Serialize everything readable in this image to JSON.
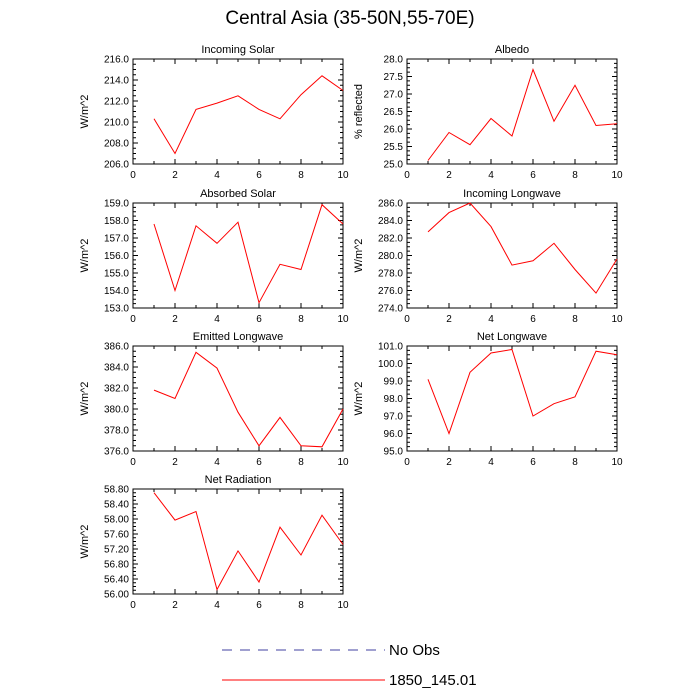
{
  "title": "Central Asia (35-50N,55-70E)",
  "colors": {
    "model": "#ff0000",
    "obs": "#4040a0",
    "frame": "#000000"
  },
  "legend": [
    {
      "label": "No Obs",
      "style": "dashed",
      "color": "#4040a0"
    },
    {
      "label": "1850_145.01",
      "style": "solid",
      "color": "#ff0000"
    }
  ],
  "chart_data": [
    {
      "type": "line",
      "title": "Incoming Solar",
      "ylabel": "W/m^2",
      "x": [
        1,
        2,
        3,
        4,
        5,
        6,
        7,
        8,
        9,
        10
      ],
      "series": [
        {
          "name": "1850_145.01",
          "values": [
            210.3,
            207.0,
            211.2,
            211.8,
            212.5,
            211.2,
            210.3,
            212.6,
            214.4,
            213.0
          ]
        }
      ],
      "xlim": [
        0,
        10
      ],
      "ylim": [
        206,
        216
      ],
      "yticks": [
        "206.0",
        "208.0",
        "210.0",
        "212.0",
        "214.0",
        "216.0"
      ],
      "xticks": [
        "0",
        "2",
        "4",
        "6",
        "8",
        "10"
      ]
    },
    {
      "type": "line",
      "title": "Albedo",
      "ylabel": "% reflected",
      "x": [
        1,
        2,
        3,
        4,
        5,
        6,
        7,
        8,
        9,
        10
      ],
      "series": [
        {
          "name": "1850_145.01",
          "values": [
            25.1,
            25.9,
            25.55,
            26.3,
            25.8,
            27.7,
            26.22,
            27.25,
            26.1,
            26.15
          ]
        }
      ],
      "xlim": [
        0,
        10
      ],
      "ylim": [
        25,
        28
      ],
      "yticks": [
        "25.0",
        "25.5",
        "26.0",
        "26.5",
        "27.0",
        "27.5",
        "28.0"
      ],
      "xticks": [
        "0",
        "2",
        "4",
        "6",
        "8",
        "10"
      ]
    },
    {
      "type": "line",
      "title": "Absorbed Solar",
      "ylabel": "W/m^2",
      "x": [
        1,
        2,
        3,
        4,
        5,
        6,
        7,
        8,
        9,
        10
      ],
      "series": [
        {
          "name": "1850_145.01",
          "values": [
            157.8,
            154.0,
            157.7,
            156.7,
            157.9,
            153.3,
            155.5,
            155.2,
            158.9,
            157.8
          ]
        }
      ],
      "xlim": [
        0,
        10
      ],
      "ylim": [
        153,
        159
      ],
      "yticks": [
        "153.0",
        "154.0",
        "155.0",
        "156.0",
        "157.0",
        "158.0",
        "159.0"
      ],
      "xticks": [
        "0",
        "2",
        "4",
        "6",
        "8",
        "10"
      ]
    },
    {
      "type": "line",
      "title": "Incoming Longwave",
      "ylabel": "W/m^2",
      "x": [
        1,
        2,
        3,
        4,
        5,
        6,
        7,
        8,
        9,
        10
      ],
      "series": [
        {
          "name": "1850_145.01",
          "values": [
            282.7,
            284.9,
            286.0,
            283.3,
            278.9,
            279.4,
            281.4,
            278.4,
            275.7,
            279.6
          ]
        }
      ],
      "xlim": [
        0,
        10
      ],
      "ylim": [
        274,
        286
      ],
      "yticks": [
        "274.0",
        "276.0",
        "278.0",
        "280.0",
        "282.0",
        "284.0",
        "286.0"
      ],
      "xticks": [
        "0",
        "2",
        "4",
        "6",
        "8",
        "10"
      ]
    },
    {
      "type": "line",
      "title": "Emitted Longwave",
      "ylabel": "W/m^2",
      "x": [
        1,
        2,
        3,
        4,
        5,
        6,
        7,
        8,
        9,
        10
      ],
      "series": [
        {
          "name": "1850_145.01",
          "values": [
            381.8,
            381.0,
            385.4,
            383.9,
            379.7,
            376.5,
            379.2,
            376.5,
            376.4,
            380.0
          ]
        }
      ],
      "xlim": [
        0,
        10
      ],
      "ylim": [
        376,
        386
      ],
      "yticks": [
        "376.0",
        "378.0",
        "380.0",
        "382.0",
        "384.0",
        "386.0"
      ],
      "xticks": [
        "0",
        "2",
        "4",
        "6",
        "8",
        "10"
      ]
    },
    {
      "type": "line",
      "title": "Net Longwave",
      "ylabel": "W/m^2",
      "x": [
        1,
        2,
        3,
        4,
        5,
        6,
        7,
        8,
        9,
        10
      ],
      "series": [
        {
          "name": "1850_145.01",
          "values": [
            99.1,
            96.0,
            99.5,
            100.6,
            100.8,
            97.0,
            97.7,
            98.1,
            100.7,
            100.5
          ]
        }
      ],
      "xlim": [
        0,
        10
      ],
      "ylim": [
        95,
        101
      ],
      "yticks": [
        "95.0",
        "96.0",
        "97.0",
        "98.0",
        "99.0",
        "100.0",
        "101.0"
      ],
      "xticks": [
        "0",
        "2",
        "4",
        "6",
        "8",
        "10"
      ]
    },
    {
      "type": "line",
      "title": "Net Radiation",
      "ylabel": "W/m^2",
      "x": [
        1,
        2,
        3,
        4,
        5,
        6,
        7,
        8,
        9,
        10
      ],
      "series": [
        {
          "name": "1850_145.01",
          "values": [
            58.7,
            57.97,
            58.2,
            56.12,
            57.15,
            56.32,
            57.78,
            57.04,
            58.1,
            57.32
          ]
        }
      ],
      "xlim": [
        0,
        10
      ],
      "ylim": [
        56,
        58.8
      ],
      "yticks": [
        "56.00",
        "56.40",
        "56.80",
        "57.20",
        "57.60",
        "58.00",
        "58.40",
        "58.80"
      ],
      "xticks": [
        "0",
        "2",
        "4",
        "6",
        "8",
        "10"
      ]
    }
  ]
}
